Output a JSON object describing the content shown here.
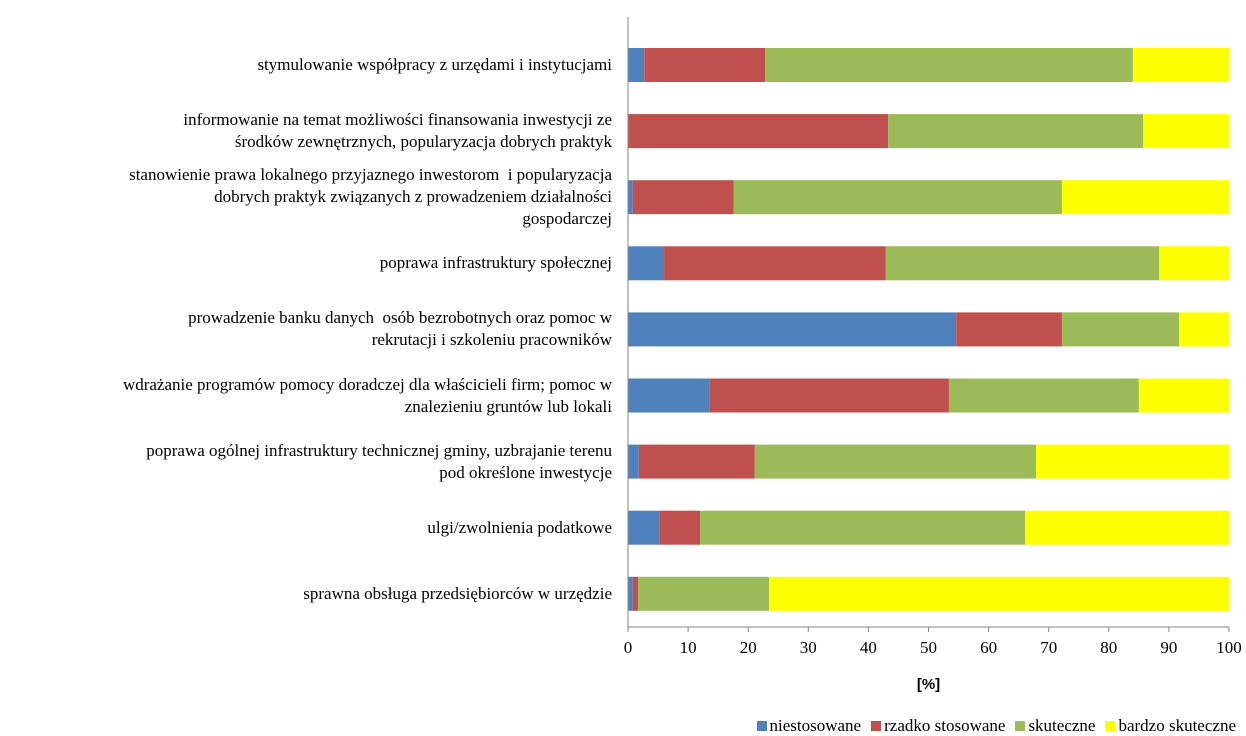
{
  "chart_data": {
    "type": "stacked-barh",
    "xlabel": "[%]",
    "categories": [
      "stymulowanie współpracy z urzędami i instytucjami",
      "informowanie na temat możliwości finansowania inwestycji ze\nśrodków zewnętrznych, popularyzacja dobrych praktyk",
      "stanowienie prawa lokalnego przyjaznego inwestorom  i popularyzacja\ndobrych praktyk związanych z prowadzeniem działalności\ngospodarczej",
      "poprawa infrastruktury społecznej",
      "prowadzenie banku danych  osób bezrobotnych oraz pomoc w\nrekrutacji i szkoleniu pracowników",
      "wdrażanie programów pomocy doradczej dla właścicieli firm; pomoc w\nznalezieniu gruntów lub lokali",
      "poprawa ogólnej infrastruktury technicznej gminy, uzbrajanie terenu\npod określone inwestycje",
      "ulgi/zwolnienia podatkowe",
      "sprawna obsługa przedsiębiorców w urzędzie"
    ],
    "series": [
      {
        "name": "niestosowane",
        "color": "#4f81bd",
        "values": [
          2.7,
          0,
          0.8,
          6.0,
          54.6,
          13.6,
          1.8,
          5.2,
          0.8
        ]
      },
      {
        "name": "rzadko stosowane",
        "color": "#c0504d",
        "values": [
          20.1,
          43.3,
          16.8,
          36.9,
          17.6,
          39.8,
          19.3,
          6.8,
          0.9
        ]
      },
      {
        "name": "skuteczne",
        "color": "#9bbb59",
        "values": [
          61.2,
          42.4,
          54.6,
          45.5,
          19.5,
          31.6,
          46.8,
          54.1,
          21.8
        ]
      },
      {
        "name": "bardzo skuteczne",
        "color": "#ffff00",
        "values": [
          16.0,
          14.3,
          27.8,
          11.6,
          8.3,
          15.0,
          32.1,
          33.9,
          76.5
        ]
      }
    ],
    "xlim": [
      0,
      100
    ],
    "xticks": [
      0,
      10,
      20,
      30,
      40,
      50,
      60,
      70,
      80,
      90,
      100
    ],
    "legend": "bottom-right"
  }
}
